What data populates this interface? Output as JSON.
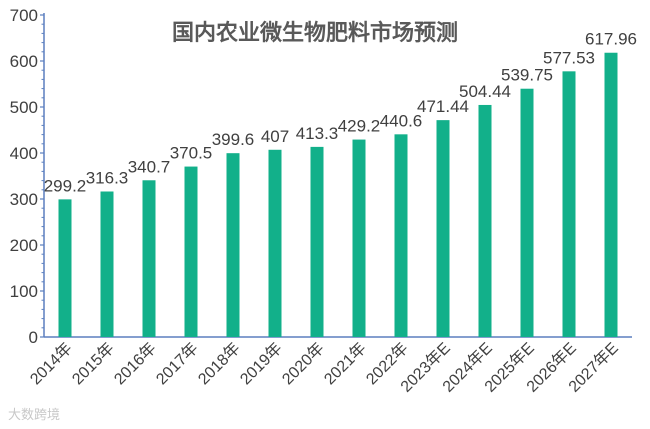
{
  "chart_data": {
    "type": "bar",
    "title": "国内农业微生物肥料市场预测",
    "categories": [
      "2014年",
      "2015年",
      "2016年",
      "2017年",
      "2018年",
      "2019年",
      "2020年",
      "2021年",
      "2022年",
      "2023年E",
      "2024年E",
      "2025年E",
      "2026年E",
      "2027年E"
    ],
    "values": [
      299.2,
      316.3,
      340.7,
      370.5,
      399.6,
      407,
      413.3,
      429.2,
      440.6,
      471.44,
      504.44,
      539.75,
      577.53,
      617.96
    ],
    "data_labels": [
      "299.2",
      "316.3",
      "340.7",
      "370.5",
      "399.6",
      "407",
      "413.3",
      "429.2",
      "440.6",
      "471.44",
      "504.44",
      "539.75",
      "577.53",
      "617.96"
    ],
    "ylim": [
      0,
      700
    ],
    "y_ticks": [
      "0",
      "100",
      "200",
      "300",
      "400",
      "500",
      "600",
      "700"
    ],
    "xlabel": "",
    "ylabel": "",
    "grid": false,
    "legend": "none",
    "bar_color": "#12b08a",
    "axis_color": "#5b7fbf"
  },
  "watermark": "大数跨境"
}
